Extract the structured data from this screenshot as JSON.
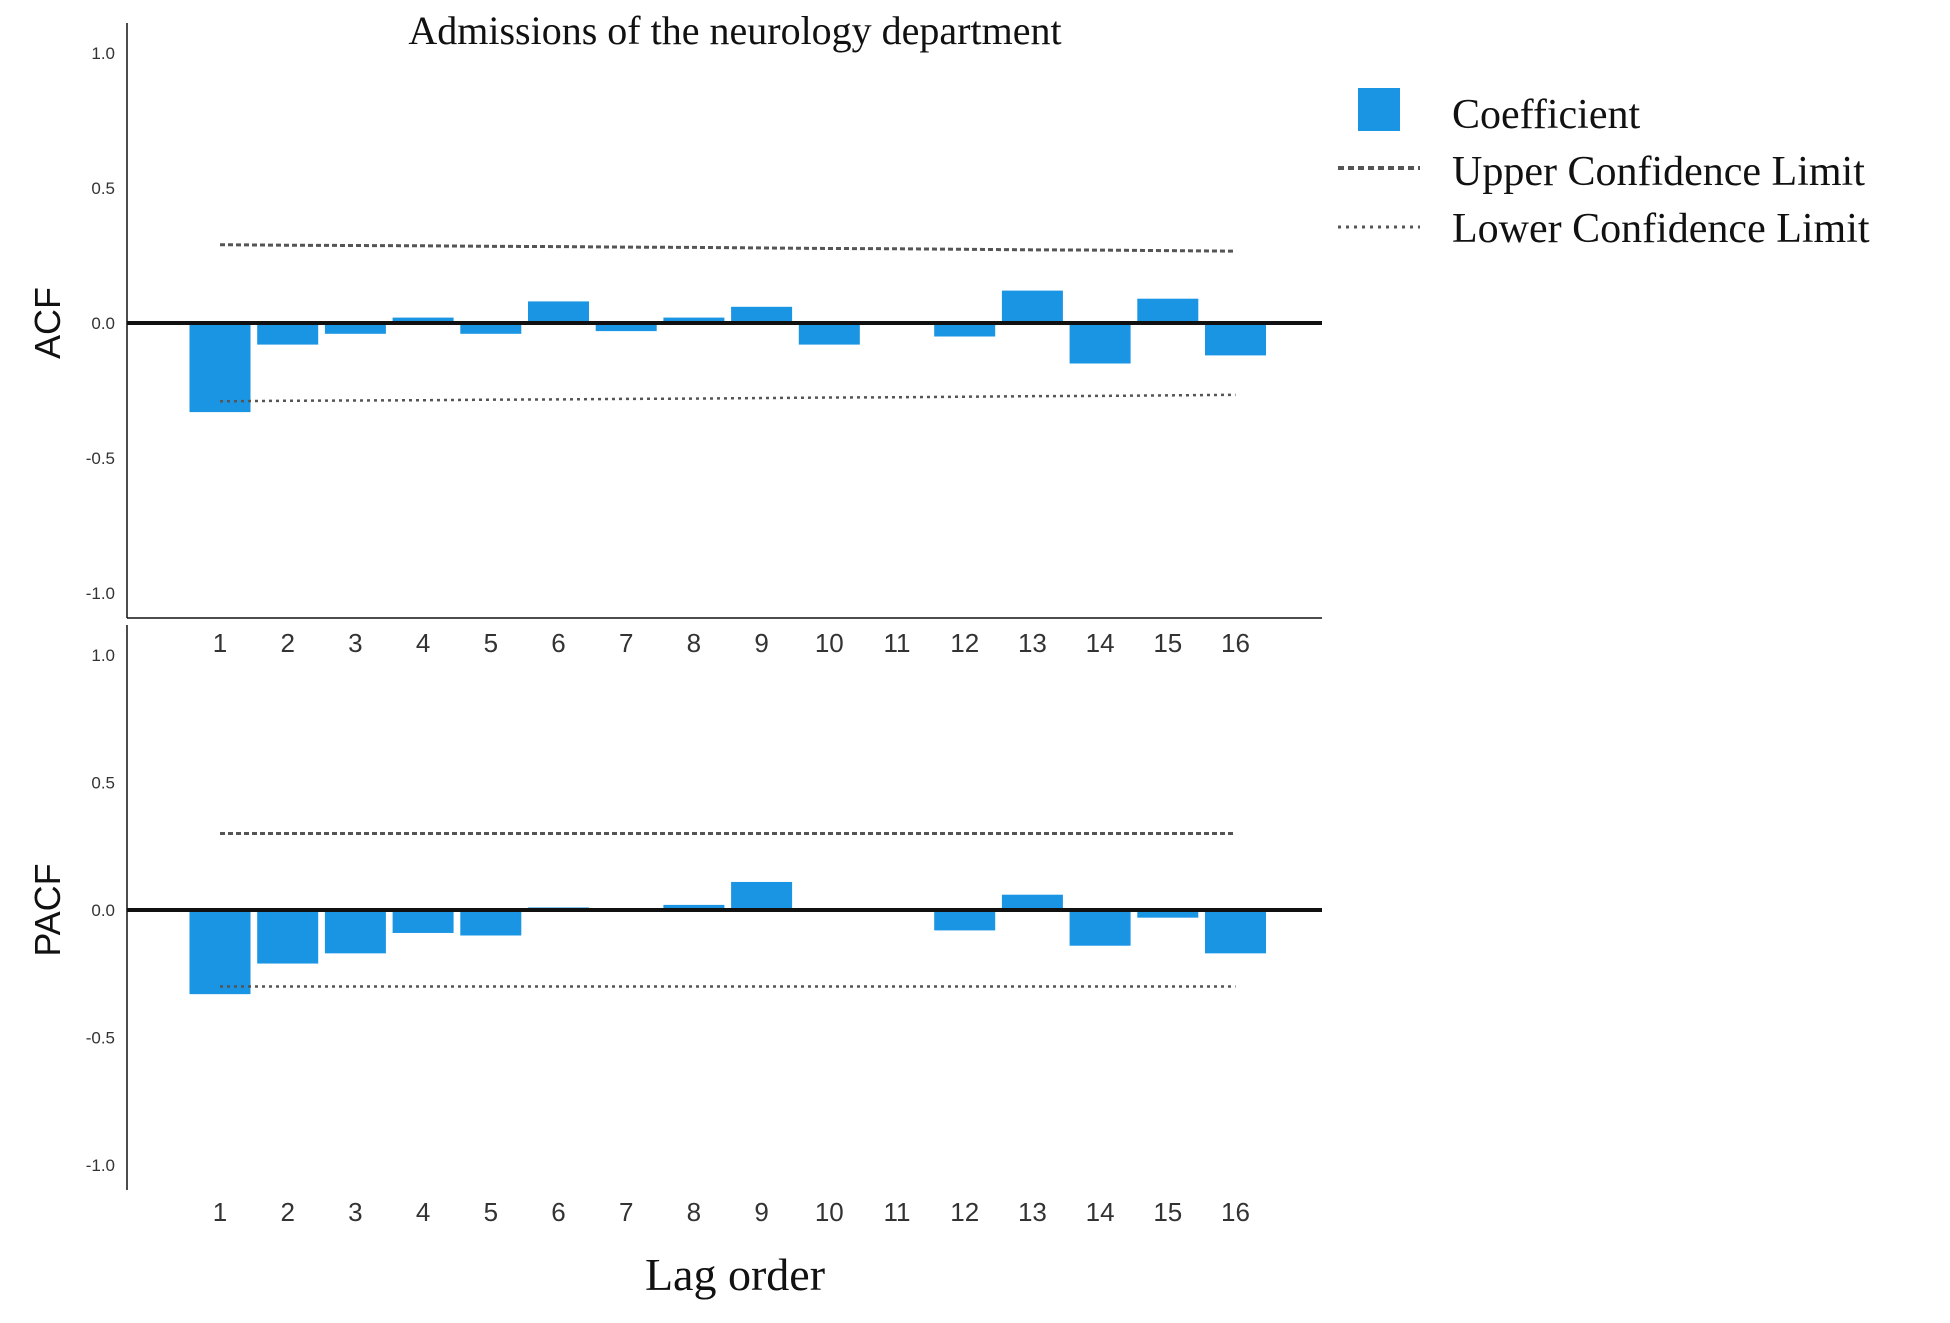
{
  "chart_data": {
    "title": "Admissions of the neurology department",
    "xlabel": "Lag order",
    "legend": {
      "position": "top-right",
      "entries": {
        "coefficient": "Coefficient",
        "upper": "Upper Confidence Limit",
        "lower": "Lower Confidence Limit"
      }
    },
    "colors": {
      "bar": "#1a95e3",
      "axis": "#111111",
      "limit": "#555555"
    },
    "panels": [
      {
        "id": "acf",
        "type": "bar",
        "ylabel": "ACF",
        "ylim": [
          -1.0,
          1.0
        ],
        "yticks": [
          "1.0",
          "0.5",
          "0.0",
          "-0.5",
          "-1.0"
        ],
        "categories": [
          "1",
          "2",
          "3",
          "4",
          "5",
          "6",
          "7",
          "8",
          "9",
          "10",
          "11",
          "12",
          "13",
          "14",
          "15",
          "16"
        ],
        "values": [
          -0.33,
          -0.08,
          -0.04,
          0.02,
          -0.04,
          0.08,
          -0.03,
          0.02,
          0.06,
          -0.08,
          0.0,
          -0.05,
          0.12,
          -0.15,
          0.09,
          -0.12
        ],
        "upper_confidence_limit": [
          0.29,
          0.288,
          0.287,
          0.286,
          0.284,
          0.283,
          0.281,
          0.28,
          0.278,
          0.276,
          0.275,
          0.273,
          0.271,
          0.27,
          0.268,
          0.266
        ],
        "lower_confidence_limit": [
          -0.29,
          -0.288,
          -0.287,
          -0.286,
          -0.284,
          -0.283,
          -0.281,
          -0.28,
          -0.278,
          -0.276,
          -0.275,
          -0.273,
          -0.271,
          -0.27,
          -0.268,
          -0.266
        ]
      },
      {
        "id": "pacf",
        "type": "bar",
        "ylabel": "PACF",
        "ylim": [
          -1.0,
          1.0
        ],
        "yticks": [
          "1.0",
          "0.5",
          "0.0",
          "-0.5",
          "-1.0"
        ],
        "categories": [
          "1",
          "2",
          "3",
          "4",
          "5",
          "6",
          "7",
          "8",
          "9",
          "10",
          "11",
          "12",
          "13",
          "14",
          "15",
          "16"
        ],
        "values": [
          -0.33,
          -0.21,
          -0.17,
          -0.09,
          -0.1,
          0.01,
          0.0,
          0.02,
          0.11,
          0.0,
          0.0,
          -0.08,
          0.06,
          -0.14,
          -0.03,
          -0.17
        ],
        "upper_confidence_limit": [
          0.3,
          0.3,
          0.3,
          0.3,
          0.3,
          0.3,
          0.3,
          0.3,
          0.3,
          0.3,
          0.3,
          0.3,
          0.3,
          0.3,
          0.3,
          0.3
        ],
        "lower_confidence_limit": [
          -0.3,
          -0.3,
          -0.3,
          -0.3,
          -0.3,
          -0.3,
          -0.3,
          -0.3,
          -0.3,
          -0.3,
          -0.3,
          -0.3,
          -0.3,
          -0.3,
          -0.3,
          -0.3
        ]
      }
    ]
  }
}
